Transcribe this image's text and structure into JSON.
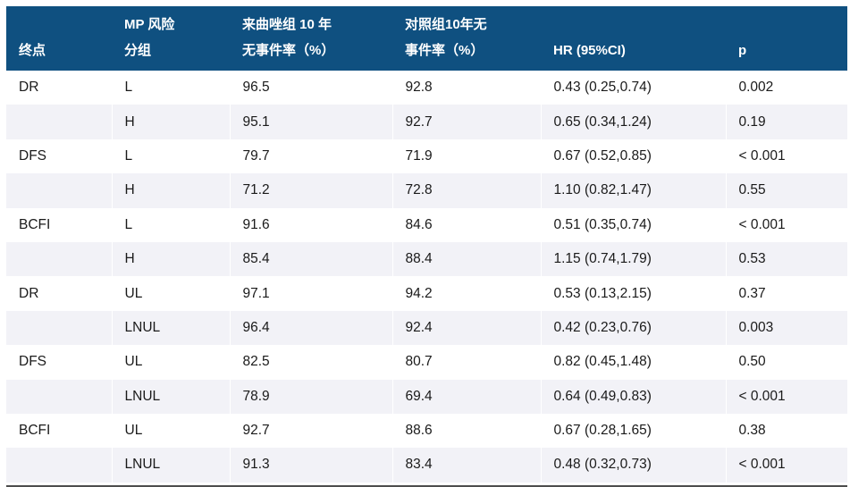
{
  "table": {
    "headers": [
      "终点",
      "MP 风险\n分组",
      "来曲唑组 10 年\n无事件率（%）",
      "对照组10年无\n事件率（%）",
      "HR (95%CI)",
      "p"
    ],
    "column_keys": [
      "endpoint",
      "mp-risk-group",
      "letrozole-10yr-event-free-rate",
      "control-10yr-event-free-rate",
      "hr-95ci",
      "p-value"
    ],
    "rows": [
      [
        "DR",
        "L",
        "96.5",
        "92.8",
        "0.43 (0.25,0.74)",
        "0.002"
      ],
      [
        "",
        "H",
        "95.1",
        "92.7",
        "0.65 (0.34,1.24)",
        "0.19"
      ],
      [
        "DFS",
        "L",
        "79.7",
        "71.9",
        "0.67 (0.52,0.85)",
        "< 0.001"
      ],
      [
        "",
        "H",
        "71.2",
        "72.8",
        "1.10 (0.82,1.47)",
        "0.55"
      ],
      [
        "BCFI",
        "L",
        "91.6",
        "84.6",
        "0.51 (0.35,0.74)",
        "< 0.001"
      ],
      [
        "",
        "H",
        "85.4",
        "88.4",
        "1.15 (0.74,1.79)",
        "0.53"
      ],
      [
        "DR",
        "UL",
        "97.1",
        "94.2",
        "0.53 (0.13,2.15)",
        "0.37"
      ],
      [
        "",
        "LNUL",
        "96.4",
        "92.4",
        "0.42 (0.23,0.76)",
        "0.003"
      ],
      [
        "DFS",
        "UL",
        "82.5",
        "80.7",
        "0.82 (0.45,1.48)",
        "0.50"
      ],
      [
        "",
        "LNUL",
        "78.9",
        "69.4",
        "0.64 (0.49,0.83)",
        "< 0.001"
      ],
      [
        "BCFI",
        "UL",
        "92.7",
        "88.6",
        "0.67 (0.28,1.65)",
        "0.38"
      ],
      [
        "",
        "LNUL",
        "91.3",
        "83.4",
        "0.48 (0.32,0.73)",
        "< 0.001"
      ]
    ]
  },
  "colors": {
    "header_bg": "#0F5080",
    "header_text": "#FFFFFF",
    "stripe_bg": "#F2F2F7",
    "row_bg": "#FFFFFF",
    "body_text": "#1A1A1A",
    "bottom_rule": "#4D4D4D"
  }
}
